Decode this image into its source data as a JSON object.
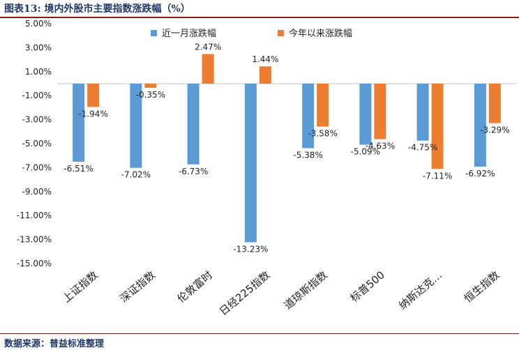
{
  "header": {
    "title": "图表13:  境内外股市主要指数涨跌幅（%）"
  },
  "footer": {
    "source": "数据来源：普益标准整理"
  },
  "chart_data": {
    "type": "bar",
    "categories": [
      "上证指数",
      "深证指数",
      "伦敦富时",
      "日经225指数",
      "道琼斯指数",
      "标普500",
      "纳斯达克…",
      "恒生指数"
    ],
    "series": [
      {
        "name": "近一月涨跌幅",
        "color": "#5b9bd5",
        "values": [
          -6.51,
          -7.02,
          -6.73,
          -13.23,
          -5.38,
          -5.09,
          -4.75,
          -6.92
        ],
        "labels": [
          "-6.51%",
          "-7.02%",
          "-6.73%",
          "-13.23%",
          "-5.38%",
          "-5.09%",
          "-4.75%",
          "-6.92%"
        ]
      },
      {
        "name": "今年以来涨跌幅",
        "color": "#ed7d31",
        "values": [
          -1.94,
          -0.35,
          2.47,
          1.44,
          -3.58,
          -4.63,
          -7.11,
          -3.29
        ],
        "labels": [
          "-1.94%",
          "-0.35%",
          "2.47%",
          "1.44%",
          "-3.58%",
          "-4.63%",
          "-7.11%",
          "-3.29%"
        ]
      }
    ],
    "yticks": [
      5,
      3,
      1,
      -1,
      -3,
      -5,
      -7,
      -9,
      -11,
      -13,
      -15
    ],
    "ytick_labels": [
      "5.00%",
      "3.00%",
      "1.00%",
      "-1.00%",
      "-3.00%",
      "-5.00%",
      "-7.00%",
      "-9.00%",
      "-11.00%",
      "-13.00%",
      "-15.00%"
    ],
    "ylim": [
      -15,
      5
    ],
    "grid": false,
    "legend": "top"
  }
}
